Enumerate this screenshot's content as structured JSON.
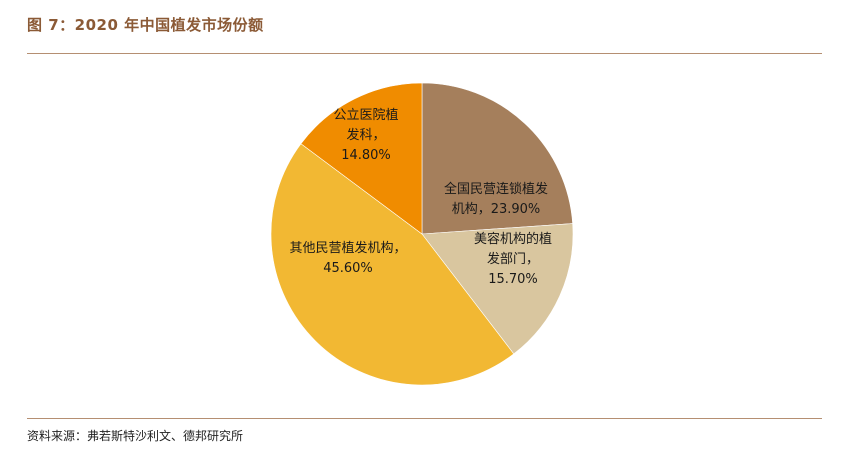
{
  "figure": {
    "title": "图 7：2020 年中国植发市场份额",
    "source": "资料来源：弗若斯特沙利文、德邦研究所"
  },
  "chart_data": {
    "type": "pie",
    "title": "图 7：2020 年中国植发市场份额",
    "unit": "%",
    "start_angle_deg": 0,
    "direction": "clockwise",
    "legend": "none",
    "slices": [
      {
        "label": "全国民营连锁植发机构",
        "value": 23.9,
        "value_text": "23.90%",
        "color": "#a57f5c",
        "label_lines": [
          "全国民营连锁植发",
          "机构，23.90%"
        ]
      },
      {
        "label": "美容机构的植发部门",
        "value": 15.7,
        "value_text": "15.70%",
        "color": "#d9c69f",
        "label_lines": [
          "美容机构的植",
          "发部门，",
          "15.70%"
        ]
      },
      {
        "label": "其他民营植发机构",
        "value": 45.6,
        "value_text": "45.60%",
        "color": "#f2b833",
        "label_lines": [
          "其他民营植发机构，",
          "45.60%"
        ]
      },
      {
        "label": "公立医院植发科",
        "value": 14.8,
        "value_text": "14.80%",
        "color": "#f08c00",
        "label_lines": [
          "公立医院植",
          "发科，",
          "14.80%"
        ]
      }
    ]
  }
}
